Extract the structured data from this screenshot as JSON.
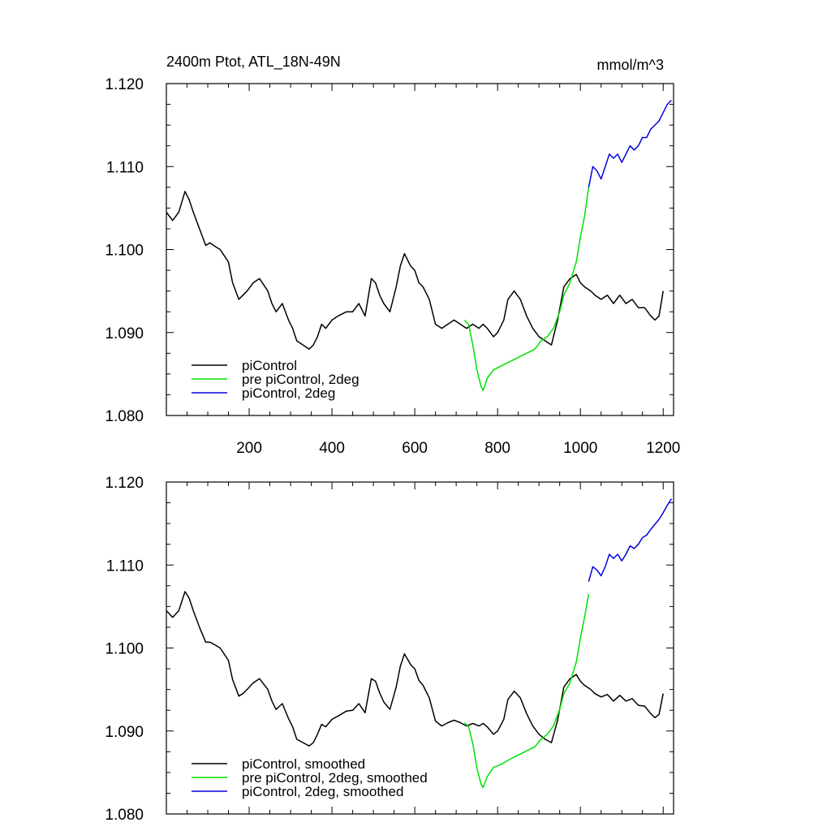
{
  "chart_data": [
    {
      "type": "line",
      "title": "2400m Ptot, ATL_18N-49N",
      "units": "mmol/m^3",
      "xlim": [
        0,
        1225
      ],
      "ylim": [
        1.08,
        1.12
      ],
      "x_ticks": [
        200,
        400,
        600,
        800,
        1000,
        1200
      ],
      "y_ticks": [
        "1.080",
        "1.090",
        "1.100",
        "1.110",
        "1.120"
      ],
      "x_tick_labels_shown": true,
      "legend_position": "bottom-left",
      "colors": {
        "black": "#000000",
        "green": "#00e000",
        "blue": "#0000e0"
      },
      "series": [
        {
          "name": "piControl",
          "color": "#000000",
          "x": [
            0,
            15,
            30,
            45,
            55,
            65,
            80,
            95,
            105,
            120,
            130,
            150,
            160,
            175,
            185,
            195,
            210,
            225,
            245,
            255,
            265,
            280,
            295,
            305,
            315,
            330,
            345,
            355,
            365,
            375,
            385,
            400,
            415,
            435,
            450,
            465,
            480,
            495,
            505,
            515,
            525,
            540,
            555,
            565,
            575,
            590,
            600,
            610,
            620,
            635,
            650,
            665,
            680,
            695,
            710,
            725,
            740,
            755,
            765,
            775,
            790,
            800,
            815,
            825,
            840,
            855,
            870,
            885,
            900,
            915,
            930,
            945,
            960,
            975,
            990,
            1000,
            1010,
            1025,
            1035,
            1050,
            1065,
            1080,
            1095,
            1110,
            1125,
            1140,
            1155,
            1170,
            1180,
            1190,
            1200
          ],
          "y": [
            1.1045,
            1.1035,
            1.1045,
            1.107,
            1.106,
            1.1045,
            1.1025,
            1.1005,
            1.1008,
            1.1003,
            1.1,
            1.0985,
            1.096,
            1.094,
            1.0945,
            1.095,
            1.096,
            1.0965,
            1.095,
            1.0935,
            1.0925,
            1.0935,
            1.0915,
            1.0905,
            1.089,
            1.0885,
            1.088,
            1.0885,
            1.0895,
            1.091,
            1.0905,
            1.0915,
            1.092,
            1.0925,
            1.0925,
            1.0935,
            1.092,
            1.0965,
            1.096,
            1.0945,
            1.0935,
            1.0925,
            1.0955,
            1.098,
            1.0995,
            1.098,
            1.0975,
            1.096,
            1.0955,
            1.094,
            1.091,
            1.0905,
            1.091,
            1.0915,
            1.091,
            1.0905,
            1.091,
            1.0905,
            1.091,
            1.0905,
            1.0895,
            1.09,
            1.0915,
            1.094,
            1.095,
            1.094,
            1.092,
            1.0905,
            1.0895,
            1.089,
            1.0885,
            1.0915,
            1.0955,
            1.0965,
            1.097,
            1.096,
            1.0955,
            1.095,
            1.0945,
            1.094,
            1.0945,
            1.0935,
            1.0945,
            1.0935,
            1.094,
            1.093,
            1.093,
            1.092,
            1.0915,
            1.092,
            1.095
          ]
        },
        {
          "name": "pre piControl, 2deg",
          "color": "#00e000",
          "x": [
            720,
            730,
            740,
            750,
            760,
            765,
            775,
            790,
            810,
            830,
            850,
            870,
            890,
            905,
            920,
            935,
            950,
            960,
            975,
            990,
            1000,
            1010,
            1020
          ],
          "y": [
            1.0915,
            1.091,
            1.0885,
            1.0855,
            1.0835,
            1.083,
            1.0845,
            1.0855,
            1.086,
            1.0865,
            1.087,
            1.0875,
            1.088,
            1.089,
            1.0895,
            1.0905,
            1.0925,
            1.0945,
            1.096,
            1.0985,
            1.1015,
            1.104,
            1.1075
          ]
        },
        {
          "name": "piControl, 2deg",
          "color": "#0000e0",
          "x": [
            1020,
            1030,
            1040,
            1050,
            1060,
            1070,
            1080,
            1090,
            1100,
            1110,
            1120,
            1130,
            1140,
            1150,
            1160,
            1170,
            1180,
            1190,
            1200,
            1210,
            1220
          ],
          "y": [
            1.1075,
            1.11,
            1.1095,
            1.1085,
            1.11,
            1.1115,
            1.111,
            1.1115,
            1.1105,
            1.1115,
            1.1125,
            1.112,
            1.1125,
            1.1135,
            1.1135,
            1.1145,
            1.115,
            1.1155,
            1.1165,
            1.1175,
            1.118
          ]
        }
      ]
    },
    {
      "type": "line",
      "title": "",
      "xlim": [
        0,
        1225
      ],
      "ylim": [
        1.08,
        1.12
      ],
      "x_ticks": [
        200,
        400,
        600,
        800,
        1000,
        1200
      ],
      "y_ticks": [
        "1.080",
        "1.090",
        "1.100",
        "1.110",
        "1.120"
      ],
      "x_tick_labels_shown": false,
      "legend_position": "bottom-left",
      "series": [
        {
          "name": "piControl, smoothed",
          "color": "#000000",
          "x": [
            0,
            15,
            30,
            45,
            55,
            65,
            80,
            95,
            105,
            120,
            130,
            150,
            160,
            175,
            185,
            195,
            210,
            225,
            245,
            255,
            265,
            280,
            295,
            305,
            315,
            330,
            345,
            355,
            365,
            375,
            385,
            400,
            415,
            435,
            450,
            465,
            480,
            495,
            505,
            515,
            525,
            540,
            555,
            565,
            575,
            590,
            600,
            610,
            620,
            635,
            650,
            665,
            680,
            695,
            710,
            725,
            740,
            755,
            765,
            775,
            790,
            800,
            815,
            825,
            840,
            855,
            870,
            885,
            900,
            915,
            930,
            945,
            960,
            975,
            990,
            1000,
            1010,
            1025,
            1035,
            1050,
            1065,
            1080,
            1095,
            1110,
            1125,
            1140,
            1155,
            1170,
            1180,
            1190,
            1200
          ],
          "y": [
            1.1045,
            1.1037,
            1.1045,
            1.1068,
            1.106,
            1.1045,
            1.1025,
            1.1007,
            1.1007,
            1.1003,
            1.1,
            1.0985,
            1.0962,
            1.0942,
            1.0945,
            1.095,
            1.0958,
            1.0963,
            1.095,
            1.0936,
            1.0926,
            1.0933,
            1.0915,
            1.0905,
            1.089,
            1.0886,
            1.0882,
            1.0886,
            1.0896,
            1.0908,
            1.0905,
            1.0914,
            1.0918,
            1.0924,
            1.0925,
            1.0933,
            1.0922,
            1.0963,
            1.096,
            1.0946,
            1.0935,
            1.0926,
            1.0953,
            1.0978,
            1.0993,
            1.098,
            1.0975,
            1.0961,
            1.0955,
            1.094,
            1.0912,
            1.0906,
            1.091,
            1.0913,
            1.091,
            1.0906,
            1.0909,
            1.0906,
            1.0909,
            1.0905,
            1.0896,
            1.09,
            1.0914,
            1.0938,
            1.0948,
            1.094,
            1.0921,
            1.0906,
            1.0896,
            1.089,
            1.0886,
            1.0913,
            1.0953,
            1.0963,
            1.0968,
            1.096,
            1.0955,
            1.095,
            1.0945,
            1.0941,
            1.0944,
            1.0936,
            1.0943,
            1.0936,
            1.0939,
            1.0931,
            1.093,
            1.0921,
            1.0916,
            1.092,
            1.0945
          ]
        },
        {
          "name": "pre piControl, 2deg, smoothed",
          "color": "#00e000",
          "x": [
            720,
            730,
            740,
            750,
            760,
            765,
            775,
            790,
            810,
            830,
            850,
            870,
            890,
            905,
            920,
            935,
            950,
            960,
            975,
            990,
            1000,
            1010,
            1020
          ],
          "y": [
            1.091,
            1.0905,
            1.0885,
            1.0855,
            1.0836,
            1.0832,
            1.0845,
            1.0856,
            1.086,
            1.0866,
            1.0871,
            1.0876,
            1.0881,
            1.089,
            1.0896,
            1.0906,
            1.0926,
            1.0945,
            1.0958,
            1.0983,
            1.1012,
            1.1037,
            1.1065
          ]
        },
        {
          "name": "piControl, 2deg, smoothed",
          "color": "#0000e0",
          "x": [
            1020,
            1030,
            1040,
            1050,
            1060,
            1070,
            1080,
            1090,
            1100,
            1110,
            1120,
            1130,
            1140,
            1150,
            1160,
            1170,
            1180,
            1190,
            1200,
            1210,
            1220
          ],
          "y": [
            1.108,
            1.1098,
            1.1094,
            1.1087,
            1.1098,
            1.1113,
            1.1108,
            1.1113,
            1.1105,
            1.1113,
            1.1123,
            1.112,
            1.1125,
            1.1133,
            1.1136,
            1.1143,
            1.1149,
            1.1155,
            1.1163,
            1.1172,
            1.118
          ]
        }
      ]
    }
  ]
}
